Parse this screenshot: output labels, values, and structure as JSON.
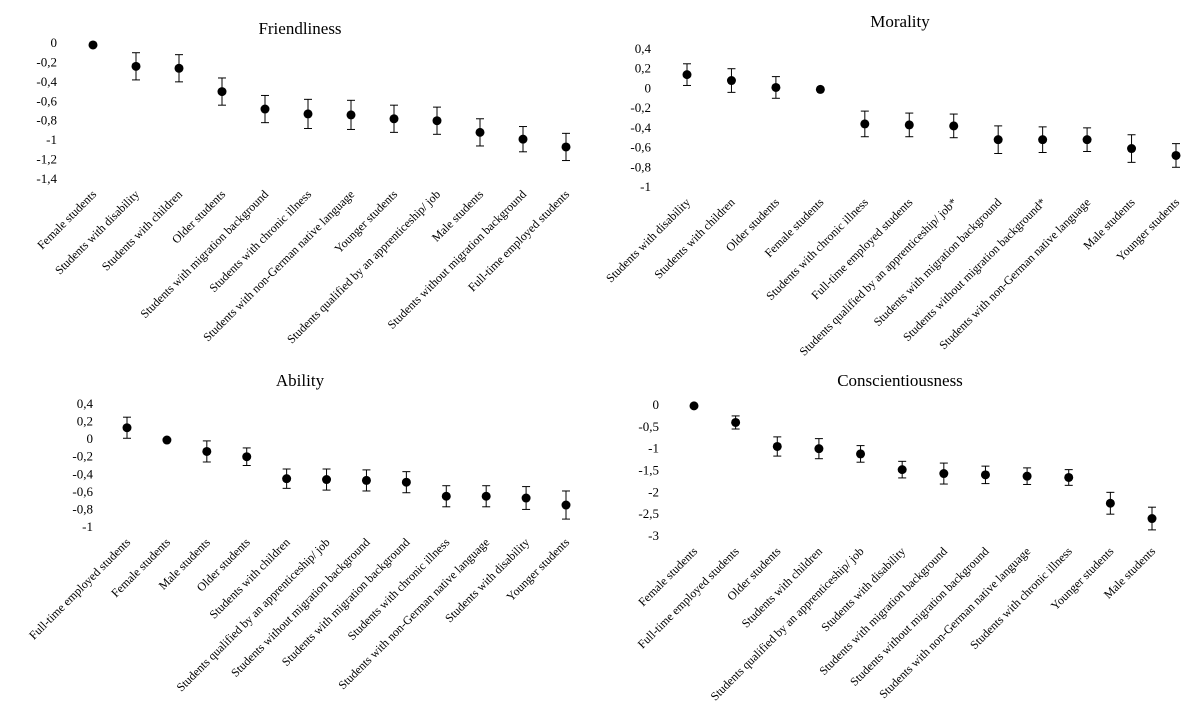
{
  "chart_data": [
    {
      "type": "scatter",
      "title": "Friendliness",
      "ylim": [
        -1.4,
        0
      ],
      "yticks": [
        "0",
        "-0,2",
        "-0,4",
        "-0,6",
        "-0,8",
        "-1",
        "-1,2",
        "-1,4"
      ],
      "ytick_values": [
        0,
        -0.2,
        -0.4,
        -0.6,
        -0.8,
        -1,
        -1.2,
        -1.4
      ],
      "categories": [
        "Female students",
        "Students with disability",
        "Students with children",
        "Older students",
        "Students with migration background",
        "Students with chronic illness",
        "Students with non-German native language",
        "Younger students",
        "Students qualified by an apprenticeship/ job",
        "Male students",
        "Students without migration background",
        "Full-time employed students"
      ],
      "values": [
        -0.02,
        -0.24,
        -0.26,
        -0.5,
        -0.68,
        -0.73,
        -0.74,
        -0.78,
        -0.8,
        -0.92,
        -0.99,
        -1.07
      ],
      "err": [
        0.0,
        0.14,
        0.14,
        0.14,
        0.14,
        0.15,
        0.15,
        0.14,
        0.14,
        0.14,
        0.13,
        0.14
      ]
    },
    {
      "type": "scatter",
      "title": "Morality",
      "ylim": [
        -1,
        0.4
      ],
      "yticks": [
        "0,4",
        "0,2",
        "0",
        "-0,2",
        "-0,4",
        "-0,6",
        "-0,8",
        "-1"
      ],
      "ytick_values": [
        0.4,
        0.2,
        0,
        -0.2,
        -0.4,
        -0.6,
        -0.8,
        -1
      ],
      "categories": [
        "Students with disability",
        "Students with children",
        "Older students",
        "Female students",
        "Students with chronic illness",
        "Full-time employed students",
        "Students qualified by an apprenticeship/ job*",
        "Students with migration background",
        "Students without migration background*",
        "Students with non-German native language",
        "Male students",
        "Younger students"
      ],
      "values": [
        0.14,
        0.08,
        0.01,
        -0.01,
        -0.36,
        -0.37,
        -0.38,
        -0.52,
        -0.52,
        -0.52,
        -0.61,
        -0.68
      ],
      "err": [
        0.11,
        0.12,
        0.11,
        0.0,
        0.13,
        0.12,
        0.12,
        0.14,
        0.13,
        0.12,
        0.14,
        0.12
      ]
    },
    {
      "type": "scatter",
      "title": "Ability",
      "ylim": [
        -1,
        0.4
      ],
      "yticks": [
        "0,4",
        "0,2",
        "0",
        "-0,2",
        "-0,4",
        "-0,6",
        "-0,8",
        "-1"
      ],
      "ytick_values": [
        0.4,
        0.2,
        0,
        -0.2,
        -0.4,
        -0.6,
        -0.8,
        -1
      ],
      "categories": [
        "Full-time employed students",
        "Female students",
        "Male students",
        "Older students",
        "Students with children",
        "Students qualified by an apprenticeship/ job",
        "Students without migration background",
        "Students with migration background",
        "Students with chronic illness",
        "Students with non-German native language",
        "Students with disability",
        "Younger students"
      ],
      "values": [
        0.13,
        -0.01,
        -0.14,
        -0.2,
        -0.45,
        -0.46,
        -0.47,
        -0.49,
        -0.65,
        -0.65,
        -0.67,
        -0.75
      ],
      "err": [
        0.12,
        0.0,
        0.12,
        0.1,
        0.11,
        0.12,
        0.12,
        0.12,
        0.12,
        0.12,
        0.13,
        0.16
      ]
    },
    {
      "type": "scatter",
      "title": "Conscientiousness",
      "ylim": [
        -3,
        0
      ],
      "yticks": [
        "0",
        "-0,5",
        "-1",
        "-1,5",
        "-2",
        "-2,5",
        "-3"
      ],
      "ytick_values": [
        0,
        -0.5,
        -1,
        -1.5,
        -2,
        -2.5,
        -3
      ],
      "categories": [
        "Female students",
        "Full-time employed students",
        "Older students",
        "Students with children",
        "Students qualified by an apprenticeship/ job",
        "Students with disability",
        "Students with migration background",
        "Students without migration background",
        "Students with non-German native language",
        "Students with chronic illness",
        "Younger students",
        "Male students"
      ],
      "values": [
        -0.02,
        -0.4,
        -0.95,
        -1.0,
        -1.12,
        -1.48,
        -1.57,
        -1.6,
        -1.63,
        -1.66,
        -2.25,
        -2.6
      ],
      "err": [
        0.0,
        0.15,
        0.22,
        0.23,
        0.19,
        0.19,
        0.24,
        0.2,
        0.19,
        0.18,
        0.25,
        0.26
      ]
    }
  ]
}
